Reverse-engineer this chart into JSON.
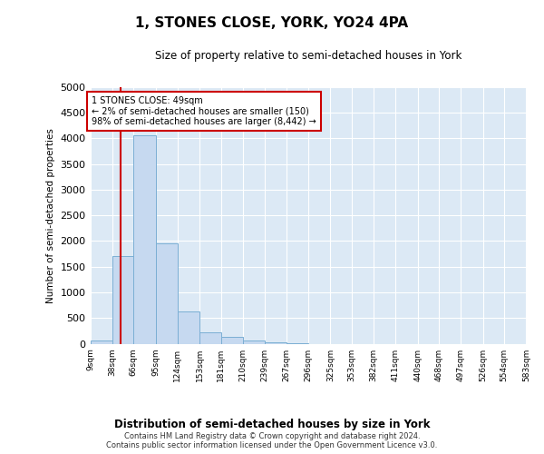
{
  "title": "1, STONES CLOSE, YORK, YO24 4PA",
  "subtitle": "Size of property relative to semi-detached houses in York",
  "xlabel": "Distribution of semi-detached houses by size in York",
  "ylabel": "Number of semi-detached properties",
  "footer": "Contains HM Land Registry data © Crown copyright and database right 2024.\nContains public sector information licensed under the Open Government Licence v3.0.",
  "annotation_title": "1 STONES CLOSE: 49sqm",
  "annotation_line1": "← 2% of semi-detached houses are smaller (150)",
  "annotation_line2": "98% of semi-detached houses are larger (8,442) →",
  "property_size": 49,
  "bar_color": "#c6d9f0",
  "bar_edge_color": "#7bafd4",
  "vline_color": "#cc0000",
  "annotation_box_color": "#cc0000",
  "background_color": "#dce9f5",
  "ylim": [
    0,
    5000
  ],
  "yticks": [
    0,
    500,
    1000,
    1500,
    2000,
    2500,
    3000,
    3500,
    4000,
    4500,
    5000
  ],
  "bin_edges": [
    9,
    38,
    66,
    95,
    124,
    153,
    181,
    210,
    239,
    267,
    296,
    325,
    353,
    382,
    411,
    440,
    468,
    497,
    526,
    554,
    583
  ],
  "bin_labels": [
    "9sqm",
    "38sqm",
    "66sqm",
    "95sqm",
    "124sqm",
    "153sqm",
    "181sqm",
    "210sqm",
    "239sqm",
    "267sqm",
    "296sqm",
    "325sqm",
    "353sqm",
    "382sqm",
    "411sqm",
    "440sqm",
    "468sqm",
    "497sqm",
    "526sqm",
    "554sqm",
    "583sqm"
  ],
  "counts": [
    70,
    1700,
    4050,
    1950,
    630,
    230,
    130,
    70,
    30,
    5,
    2,
    1,
    0,
    0,
    0,
    0,
    0,
    0,
    0,
    0
  ]
}
